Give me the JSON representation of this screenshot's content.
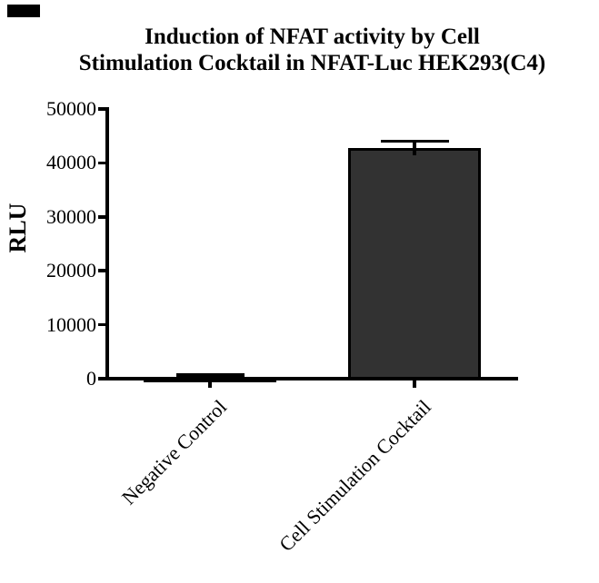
{
  "figure": {
    "title_lines": [
      "Induction of NFAT activity by Cell",
      "Stimulation Cocktail in NFAT-Luc HEK293(C4)"
    ],
    "icons": {
      "corner_mark": "black-rectangle-artifact"
    }
  },
  "chart_data": {
    "type": "bar",
    "title": "Induction of NFAT activity by Cell Stimulation Cocktail in NFAT-Luc HEK293(C4)",
    "categories": [
      "Negative Control",
      "Cell Stimulation Cocktail"
    ],
    "values": [
      300,
      42800
    ],
    "error_plus": [
      400,
      1200
    ],
    "ylabel": "RLU",
    "xlabel": "",
    "ylim": [
      0,
      50000
    ],
    "yticks": [
      0,
      10000,
      20000,
      30000,
      40000,
      50000
    ],
    "ytick_labels": [
      "0",
      "10000",
      "20000",
      "30000",
      "40000",
      "50000"
    ],
    "grid": false,
    "legend_position": "none",
    "bar_fill_color": "#323232",
    "bar_border_color": "#000000",
    "axis_color": "#000000",
    "error_bar_style": "plus-only-with-caps",
    "category_label_rotation_deg": 45
  }
}
